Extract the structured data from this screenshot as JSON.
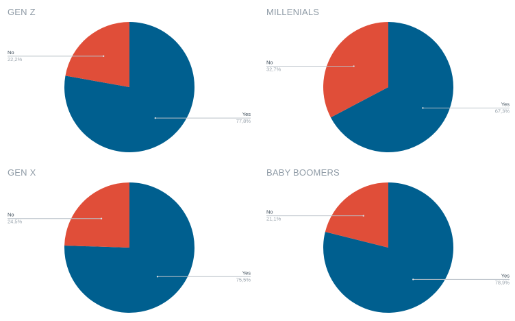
{
  "colors": {
    "yes": "#005f8f",
    "no": "#e04e39",
    "leader": "#b9c1c8"
  },
  "chart_data": [
    {
      "type": "pie",
      "title": "GEN Z",
      "slices": [
        {
          "label": "Yes",
          "value": 77.8,
          "value_label": "77,8%"
        },
        {
          "label": "No",
          "value": 22.2,
          "value_label": "22,2%"
        }
      ]
    },
    {
      "type": "pie",
      "title": "MILLENIALS",
      "slices": [
        {
          "label": "Yes",
          "value": 67.3,
          "value_label": "67,3%"
        },
        {
          "label": "No",
          "value": 32.7,
          "value_label": "32,7%"
        }
      ]
    },
    {
      "type": "pie",
      "title": "GEN X",
      "slices": [
        {
          "label": "Yes",
          "value": 75.5,
          "value_label": "75,5%"
        },
        {
          "label": "No",
          "value": 24.5,
          "value_label": "24,5%"
        }
      ]
    },
    {
      "type": "pie",
      "title": "BABY BOOMERS",
      "slices": [
        {
          "label": "Yes",
          "value": 78.9,
          "value_label": "78,9%"
        },
        {
          "label": "No",
          "value": 21.1,
          "value_label": "21,1%"
        }
      ]
    }
  ]
}
